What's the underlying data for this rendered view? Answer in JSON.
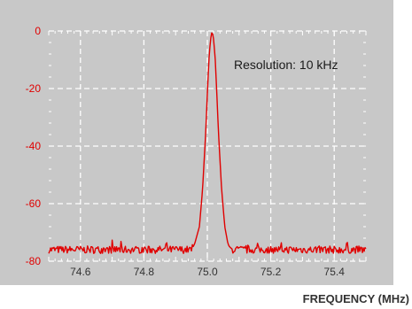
{
  "chart_data": {
    "type": "line",
    "title": "",
    "xlabel": "FREQUENCY (MHz)",
    "ylabel": "",
    "xlim": [
      74.5,
      75.5
    ],
    "ylim": [
      -80,
      0
    ],
    "x_ticks": [
      74.6,
      74.8,
      75.0,
      75.2,
      75.4
    ],
    "x_tick_labels": [
      "74.6",
      "74.8",
      "75.0",
      "75.2",
      "75.4"
    ],
    "y_ticks": [
      0,
      -20,
      -40,
      -60,
      -80
    ],
    "y_tick_labels": [
      "0",
      "-20",
      "-40",
      "-60",
      "-80"
    ],
    "grid": true,
    "legend": "none",
    "annotations": [
      {
        "text": "Resolution: 10 kHz"
      }
    ],
    "series": [
      {
        "points": [
          [
            74.5,
            -76
          ],
          [
            74.95,
            -76
          ],
          [
            74.96,
            -74
          ],
          [
            74.975,
            -68
          ],
          [
            74.985,
            -55
          ],
          [
            74.995,
            -35
          ],
          [
            75.0,
            -22
          ],
          [
            75.005,
            -10
          ],
          [
            75.01,
            -3
          ],
          [
            75.015,
            0
          ],
          [
            75.02,
            -3
          ],
          [
            75.025,
            -10
          ],
          [
            75.03,
            -22
          ],
          [
            75.035,
            -35
          ],
          [
            75.045,
            -55
          ],
          [
            75.055,
            -68
          ],
          [
            75.065,
            -74
          ],
          [
            75.075,
            -76
          ],
          [
            75.5,
            -76
          ]
        ],
        "noise_floor": -76,
        "color": "#e00000"
      }
    ],
    "colors": {
      "plot_background": "#c8c8c8",
      "grid": "#ffffff",
      "tick_labels": "#e00000",
      "trace": "#e00000"
    }
  }
}
